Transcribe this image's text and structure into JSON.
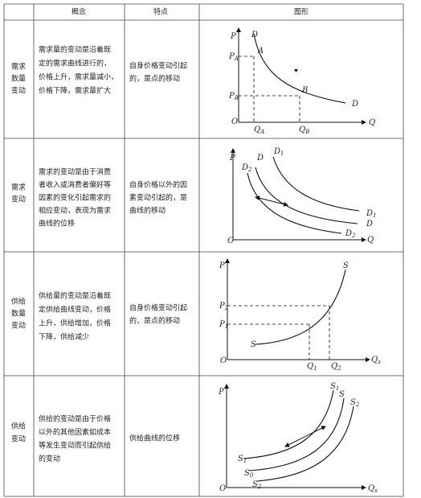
{
  "header": [
    "概念",
    "特点",
    "图形"
  ],
  "rows": [
    {
      "label": [
        "需求",
        "数量",
        "变动"
      ],
      "concept": [
        "需求量的变动是沿着既",
        "定的需求曲线进行的，",
        "价格上升，需求量减小，",
        "价格下降，需求量扩大"
      ],
      "feature": [
        "自身价格变动引起",
        "的，是点的移动"
      ],
      "graph": [
        {
          "t": "P"
        },
        {
          "t": "D"
        },
        {
          "t": "P",
          "s": "A"
        },
        {
          "t": "A"
        },
        {
          "t": "B"
        },
        {
          "t": "P",
          "s": "B"
        },
        {
          "t": "D"
        },
        {
          "t": "O"
        },
        {
          "t": "Q",
          "s": "A"
        },
        {
          "t": "Q",
          "s": "B"
        },
        {
          "t": "Q"
        }
      ]
    },
    {
      "label": [
        "需求",
        "变动"
      ],
      "concept": [
        "需求的变动是由于消费",
        "者收入或消费者偏好等",
        "因素的变化引起需求的",
        "相应变动，表现为需求",
        "曲线的位移"
      ],
      "feature": [
        "自身价格以外的因",
        "素变动引起的，是",
        "曲线的移动"
      ],
      "graph": [
        {
          "t": "P"
        },
        {
          "t": "D",
          "s": "1"
        },
        {
          "t": "D",
          "s": "2"
        },
        {
          "t": "D"
        },
        {
          "t": "D",
          "s": "1"
        },
        {
          "t": "D"
        },
        {
          "t": "D",
          "s": "2"
        },
        {
          "t": "O"
        },
        {
          "t": "Q"
        }
      ]
    },
    {
      "label": [
        "供给",
        "数量",
        "变动"
      ],
      "concept": [
        "供给量的变动是沿着既",
        "定供给曲线变动，价格",
        "上升，供给增加，价格",
        "下降，供给减少"
      ],
      "feature": [
        "自身价格变动引起",
        "的，是点的移动"
      ],
      "graph": [
        {
          "t": "P"
        },
        {
          "t": "S"
        },
        {
          "t": "P",
          "s": "2"
        },
        {
          "t": "P",
          "s": "1"
        },
        {
          "t": "S"
        },
        {
          "t": "O"
        },
        {
          "t": "Q",
          "s": "1"
        },
        {
          "t": "Q",
          "s": "2"
        },
        {
          "t": "Q",
          "s": "s"
        }
      ]
    },
    {
      "label": [
        "供给",
        "变动"
      ],
      "concept": [
        "供给的变动是由于价格",
        "以外的其他因素如成本",
        "等发生变动而引起供给",
        "的变动"
      ],
      "feature": [
        "供给曲线的位移"
      ],
      "graph": [
        {
          "t": "P"
        },
        {
          "t": "S",
          "s": "1"
        },
        {
          "t": "S"
        },
        {
          "t": "S",
          "s": "2"
        },
        {
          "t": "S",
          "s": "1"
        },
        {
          "t": "S",
          "s": "0"
        },
        {
          "t": "S",
          "s": "2"
        },
        {
          "t": "O"
        },
        {
          "t": "Q",
          "s": "s"
        }
      ]
    }
  ]
}
